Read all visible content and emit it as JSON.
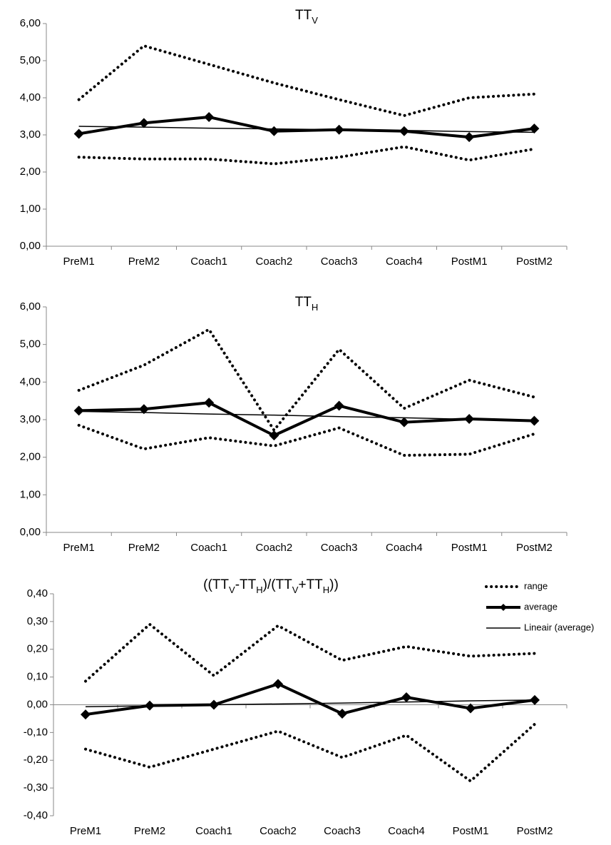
{
  "chart_data": [
    {
      "type": "line",
      "title": [
        {
          "text": "TT"
        },
        {
          "text": "V",
          "sub": true
        }
      ],
      "categories": [
        "PreM1",
        "PreM2",
        "Coach1",
        "Coach2",
        "Coach3",
        "Coach4",
        "PostM1",
        "PostM2"
      ],
      "ylim": [
        0,
        6
      ],
      "yticks": [
        {
          "value": 0,
          "label": "0,00"
        },
        {
          "value": 1,
          "label": "1,00"
        },
        {
          "value": 2,
          "label": "2,00"
        },
        {
          "value": 3,
          "label": "3,00"
        },
        {
          "value": 4,
          "label": "4,00"
        },
        {
          "value": 5,
          "label": "5,00"
        },
        {
          "value": 6,
          "label": "6,00"
        }
      ],
      "series": [
        {
          "style": "dotted",
          "color": "#000000",
          "high": [
            3.95,
            5.4,
            4.9,
            4.4,
            3.95,
            3.52,
            4.0,
            4.1
          ],
          "low": [
            2.4,
            2.35,
            2.35,
            2.22,
            2.4,
            2.68,
            2.32,
            2.62
          ]
        },
        {
          "style": "thick",
          "marker": "diamond",
          "color": "#000000",
          "values": [
            3.03,
            3.32,
            3.48,
            3.1,
            3.14,
            3.1,
            2.94,
            3.17
          ]
        },
        {
          "style": "thin",
          "color": "#000000",
          "values": [
            3.23,
            3.21,
            3.18,
            3.16,
            3.14,
            3.12,
            3.09,
            3.07
          ]
        }
      ]
    },
    {
      "type": "line",
      "title": [
        {
          "text": "TT"
        },
        {
          "text": "H",
          "sub": true
        }
      ],
      "categories": [
        "PreM1",
        "PreM2",
        "Coach1",
        "Coach2",
        "Coach3",
        "Coach4",
        "PostM1",
        "PostM2"
      ],
      "ylim": [
        0,
        6
      ],
      "yticks": [
        {
          "value": 0,
          "label": "0,00"
        },
        {
          "value": 1,
          "label": "1,00"
        },
        {
          "value": 2,
          "label": "2,00"
        },
        {
          "value": 3,
          "label": "3,00"
        },
        {
          "value": 4,
          "label": "4,00"
        },
        {
          "value": 5,
          "label": "5,00"
        },
        {
          "value": 6,
          "label": "6,00"
        }
      ],
      "series": [
        {
          "style": "dotted",
          "color": "#000000",
          "high": [
            3.78,
            4.45,
            5.4,
            2.72,
            4.87,
            3.3,
            4.05,
            3.6
          ],
          "low": [
            2.85,
            2.22,
            2.52,
            2.3,
            2.78,
            2.05,
            2.08,
            2.62
          ]
        },
        {
          "style": "thick",
          "marker": "diamond",
          "color": "#000000",
          "values": [
            3.24,
            3.28,
            3.45,
            2.58,
            3.37,
            2.93,
            3.02,
            2.97
          ]
        },
        {
          "style": "thin",
          "color": "#000000",
          "values": [
            3.22,
            3.19,
            3.15,
            3.12,
            3.08,
            3.05,
            3.01,
            2.98
          ]
        }
      ]
    },
    {
      "type": "line",
      "title": [
        {
          "text": "((TT"
        },
        {
          "text": "V",
          "sub": true
        },
        {
          "text": "-TT"
        },
        {
          "text": "H",
          "sub": true
        },
        {
          "text": ")/(TT"
        },
        {
          "text": "V",
          "sub": true
        },
        {
          "text": "+TT"
        },
        {
          "text": "H",
          "sub": true
        },
        {
          "text": "))"
        }
      ],
      "categories": [
        "PreM1",
        "PreM2",
        "Coach1",
        "Coach2",
        "Coach3",
        "Coach4",
        "PostM1",
        "PostM2"
      ],
      "ylim": [
        -0.4,
        0.4
      ],
      "yticks": [
        {
          "value": -0.4,
          "label": "-0,40"
        },
        {
          "value": -0.3,
          "label": "-0,30"
        },
        {
          "value": -0.2,
          "label": "-0,20"
        },
        {
          "value": -0.1,
          "label": "-0,10"
        },
        {
          "value": 0,
          "label": "0,00"
        },
        {
          "value": 0.1,
          "label": "0,10"
        },
        {
          "value": 0.2,
          "label": "0,20"
        },
        {
          "value": 0.3,
          "label": "0,30"
        },
        {
          "value": 0.4,
          "label": "0,40"
        }
      ],
      "legend": "upper right",
      "series": [
        {
          "name": "range",
          "style": "dotted",
          "color": "#000000",
          "high": [
            0.085,
            0.29,
            0.105,
            0.285,
            0.16,
            0.21,
            0.175,
            0.185
          ],
          "low": [
            -0.16,
            -0.225,
            -0.16,
            -0.095,
            -0.19,
            -0.11,
            -0.275,
            -0.07
          ]
        },
        {
          "name": "average",
          "style": "thick",
          "marker": "diamond",
          "color": "#000000",
          "values": [
            -0.035,
            -0.003,
            0.0,
            0.075,
            -0.032,
            0.027,
            -0.013,
            0.017
          ]
        },
        {
          "name": "Lineair (average)",
          "style": "thin",
          "color": "#000000",
          "values": [
            -0.007,
            -0.004,
            0.0,
            0.003,
            0.006,
            0.01,
            0.014,
            0.017
          ]
        }
      ]
    }
  ]
}
